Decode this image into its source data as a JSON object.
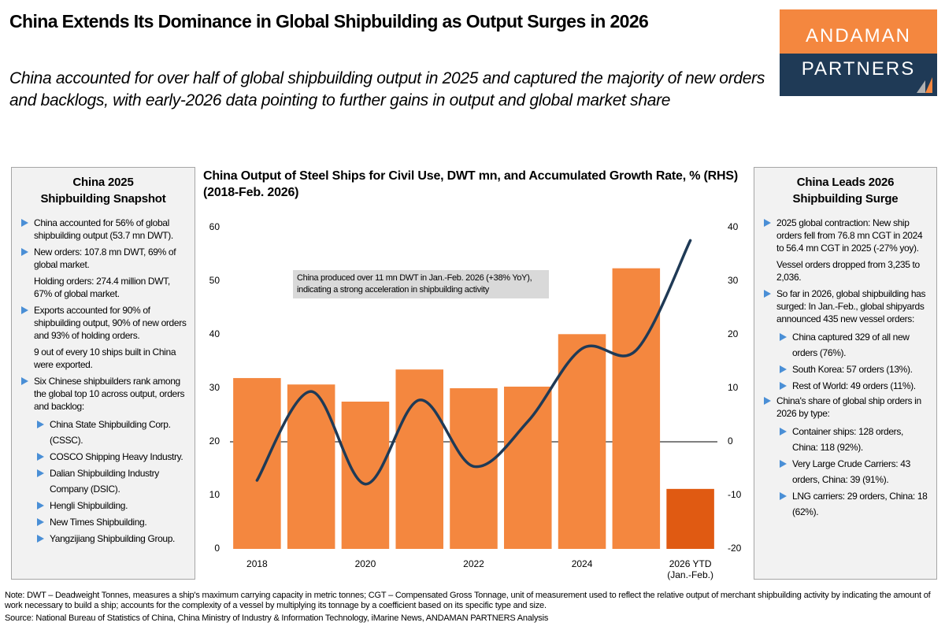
{
  "header": {
    "title": "China Extends Its Dominance in Global Shipbuilding as Output Surges in 2026",
    "subtitle": "China accounted for over half of global shipbuilding output in 2025 and captured the majority of new orders and backlogs, with early-2026 data pointing to further gains in output and global market share"
  },
  "logo": {
    "top": "ANDAMAN",
    "bottom": "PARTNERS"
  },
  "left_panel": {
    "title_lines": [
      "China 2025",
      "Shipbuilding Snapshot"
    ],
    "items": [
      {
        "text": "China accounted for 56% of global shipbuilding output (53.7 mn DWT)."
      },
      {
        "text": "New orders: 107.8 mn DWT, 69% of global market.",
        "notes": [
          "Holding orders: 274.4 million DWT, 67% of global market."
        ]
      },
      {
        "text": "Exports accounted for 90% of shipbuilding output, 90% of new orders and 93% of holding orders.",
        "notes": [
          "9 out of every 10 ships built in China were exported."
        ]
      },
      {
        "text": "Six Chinese shipbuilders rank among the global top 10 across output, orders and backlog:",
        "subitems": [
          "China State Shipbuilding Corp. (CSSC).",
          "COSCO Shipping Heavy Industry.",
          "Dalian Shipbuilding Industry Company (DSIC).",
          "Hengli Shipbuilding.",
          "New Times Shipbuilding.",
          "Yangzijiang Shipbuilding Group."
        ]
      }
    ]
  },
  "right_panel": {
    "title_lines": [
      "China Leads 2026",
      "Shipbuilding Surge"
    ],
    "items": [
      {
        "text": "2025 global contraction: New ship orders fell from 76.8 mn CGT in 2024 to 56.4 mn CGT in 2025 (-27% yoy).",
        "notes": [
          "Vessel orders dropped from 3,235 to 2,036."
        ]
      },
      {
        "text": "So far in 2026, global shipbuilding has surged: In Jan.-Feb., global shipyards announced 435 new vessel orders:",
        "subitems": [
          "China captured 329 of all new orders (76%).",
          "South Korea: 57 orders (13%).",
          "Rest of World: 49 orders (11%)."
        ]
      },
      {
        "text": "China's share of global ship orders in 2026 by type:",
        "subitems": [
          "Container ships: 128 orders, China: 118 (92%).",
          "Very Large Crude Carriers: 43 orders, China: 39 (91%).",
          "LNG carriers: 29 orders, China: 18 (62%)."
        ]
      }
    ]
  },
  "chart_data": {
    "type": "bar_line",
    "title": "China Output of Steel Ships for Civil Use, DWT mn, and Accumulated Growth Rate, % (RHS) (2018-Feb. 2026)",
    "categories": [
      "2018",
      null,
      "2020",
      null,
      "2022",
      null,
      "2024",
      null,
      "2026 YTD (Jan.-Feb.)"
    ],
    "series": [
      {
        "name": "Output",
        "kind": "bar",
        "color": "#f4873f",
        "highlight_color": "#e05a12",
        "highlight_index": 8,
        "values": [
          31.9,
          30.7,
          27.5,
          33.5,
          30.0,
          30.3,
          40.1,
          52.4,
          11.2
        ]
      },
      {
        "name": "Accumulated Growth Rate",
        "kind": "line",
        "axis": "y2",
        "color": "#1f3a56",
        "values": [
          -7.2,
          9.4,
          -7.9,
          7.8,
          -4.6,
          3.8,
          17.4,
          17.1,
          37.6
        ]
      }
    ],
    "ylim": [
      0,
      60
    ],
    "yticks": [
      0,
      10,
      20,
      30,
      40,
      50,
      60
    ],
    "y2lim": [
      -20,
      40
    ],
    "y2ticks": [
      -20,
      -10,
      0,
      10,
      20,
      30,
      40
    ],
    "y2_zero_line": true,
    "grid": false,
    "annotation": "China produced over 11 mn DWT in Jan.-Feb. 2026 (+38% YoY), indicating a strong acceleration in shipbuilding activity"
  },
  "footer": {
    "note": "Note: DWT – Deadweight Tonnes, measures a ship's maximum carrying capacity in metric tonnes; CGT – Compensated Gross Tonnage, unit of measurement used to reflect the relative output of merchant shipbuilding activity by indicating the amount of work necessary to build a ship; accounts for the complexity of a vessel by multiplying its tonnage by a coefficient based on its specific type and size.",
    "source": "Source: National Bureau of Statistics of China, China Ministry of Industry & Information Technology, iMarine News, ANDAMAN PARTNERS Analysis"
  }
}
